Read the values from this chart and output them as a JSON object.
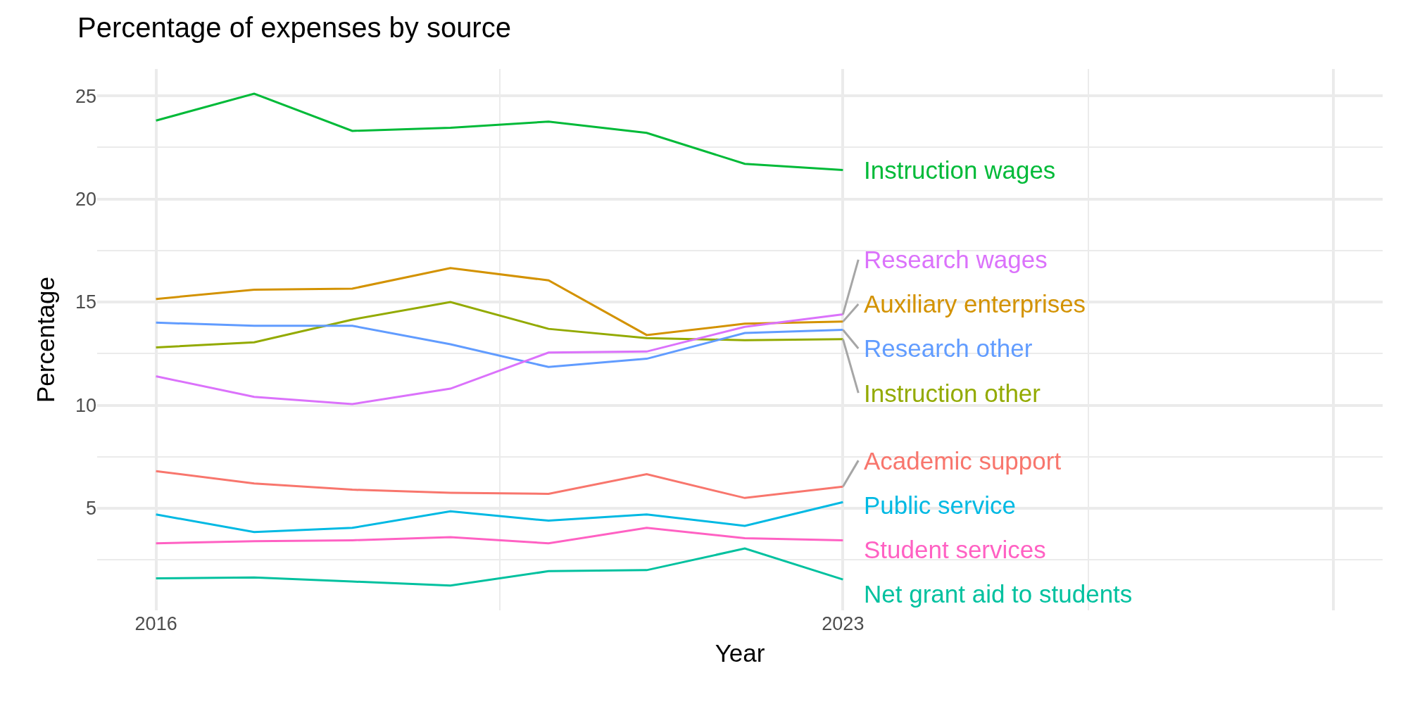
{
  "chart_data": {
    "type": "line",
    "title": "Percentage of expenses by source",
    "xlabel": "Year",
    "ylabel": "Percentage",
    "x": [
      2016,
      2017,
      2018,
      2019,
      2020,
      2021,
      2022,
      2023
    ],
    "xlim": [
      2015.4,
      2028.5
    ],
    "xticks": [
      2016,
      2023,
      {
        "value": 2028,
        "label": null
      }
    ],
    "ylim": [
      0.05,
      26.3
    ],
    "yticks": [
      5,
      10,
      15,
      20,
      25
    ],
    "grid": true,
    "legend": false,
    "marker": "none",
    "line_style": "solid",
    "series": [
      {
        "name": "Academic support",
        "color": "#f8766d",
        "values": [
          6.8,
          6.2,
          5.9,
          5.75,
          5.7,
          6.65,
          5.5,
          6.05
        ]
      },
      {
        "name": "Auxiliary enterprises",
        "color": "#d39200",
        "values": [
          15.15,
          15.6,
          15.65,
          16.65,
          16.05,
          13.4,
          13.95,
          14.05
        ]
      },
      {
        "name": "Instruction other",
        "color": "#93aa00",
        "values": [
          12.8,
          13.05,
          14.15,
          15.0,
          13.7,
          13.25,
          13.15,
          13.2
        ]
      },
      {
        "name": "Instruction wages",
        "color": "#00ba38",
        "values": [
          23.8,
          25.1,
          23.3,
          23.45,
          23.75,
          23.2,
          21.7,
          21.4
        ]
      },
      {
        "name": "Net grant aid to students",
        "color": "#00c19f",
        "values": [
          1.6,
          1.65,
          1.45,
          1.25,
          1.95,
          2.0,
          3.05,
          1.55
        ]
      },
      {
        "name": "Public service",
        "color": "#00b9e3",
        "values": [
          4.7,
          3.85,
          4.05,
          4.85,
          4.4,
          4.7,
          4.15,
          5.3
        ]
      },
      {
        "name": "Research other",
        "color": "#619cff",
        "values": [
          14.0,
          13.85,
          13.85,
          12.95,
          11.85,
          12.25,
          13.5,
          13.65
        ]
      },
      {
        "name": "Research wages",
        "color": "#db72fb",
        "values": [
          11.4,
          10.4,
          10.05,
          10.8,
          12.55,
          12.6,
          13.8,
          14.4
        ]
      },
      {
        "name": "Student services",
        "color": "#ff61c3",
        "values": [
          3.3,
          3.4,
          3.45,
          3.6,
          3.3,
          4.05,
          3.55,
          3.45
        ]
      }
    ]
  }
}
